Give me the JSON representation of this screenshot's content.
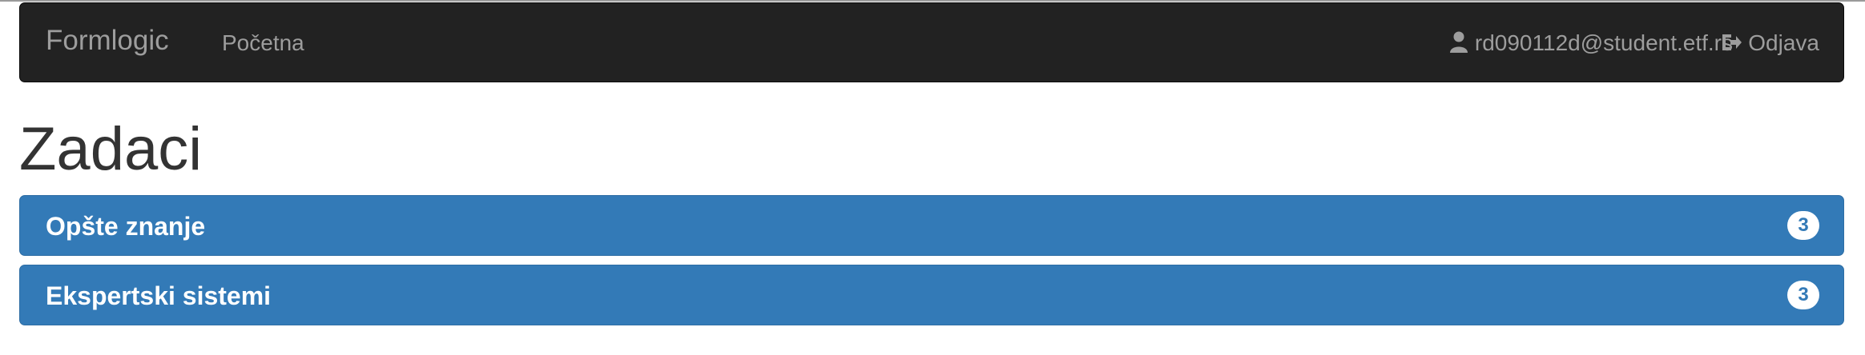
{
  "navbar": {
    "brand": "Formlogic",
    "home_label": "Početna",
    "user_email": "rd090112d@student.etf.rs",
    "logout_label": "Odjava",
    "user_icon": "user-icon",
    "logout_icon": "logout-icon",
    "background_color": "#222222",
    "text_color": "#9d9d9d"
  },
  "main": {
    "title": "Zadaci",
    "groups": [
      {
        "label": "Opšte znanje",
        "count": "3"
      },
      {
        "label": "Ekspertski sistemi",
        "count": "3"
      }
    ],
    "accent_color": "#337ab7"
  }
}
